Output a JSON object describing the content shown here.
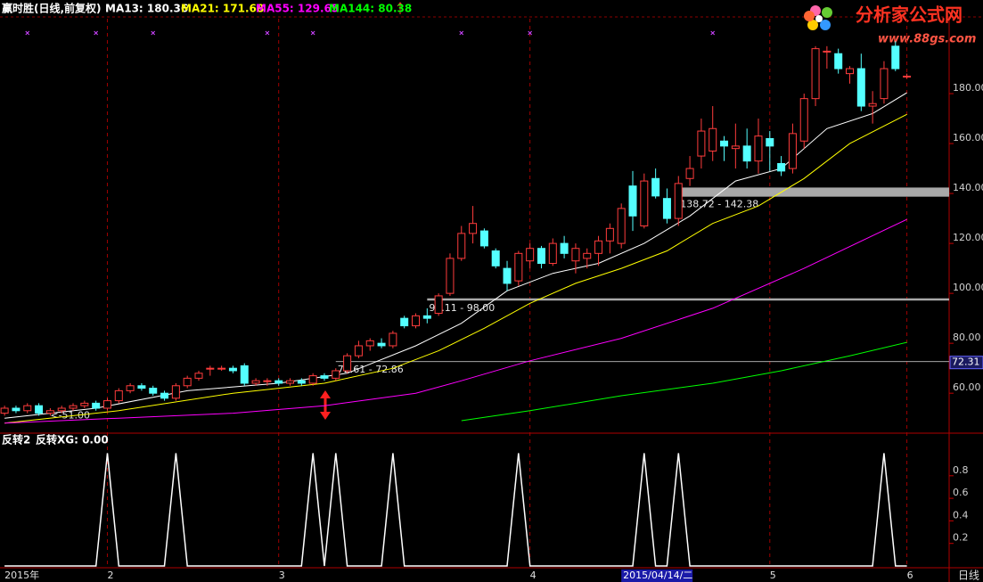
{
  "logo": {
    "title": "分析家公式网",
    "url": "www.88gs.com"
  },
  "chart_data": [
    {
      "type": "candlestick",
      "title": "赢时胜(日线,前复权)",
      "xlim": [
        -0.4,
        82.7
      ],
      "ylim": [
        44,
        210
      ],
      "yticks": [
        {
          "value": 60,
          "label": "60.00"
        },
        {
          "value": 80,
          "label": "80.00"
        },
        {
          "value": 100,
          "label": "100.00"
        },
        {
          "value": 120,
          "label": "120.00"
        },
        {
          "value": 140,
          "label": "140.00"
        },
        {
          "value": 160,
          "label": "160.00"
        },
        {
          "value": 180,
          "label": "180.00"
        }
      ],
      "xticks": [
        {
          "value": 0,
          "label": "2015年"
        },
        {
          "value": 9,
          "label": "2"
        },
        {
          "value": 24,
          "label": "3"
        },
        {
          "value": 46,
          "label": "4"
        },
        {
          "value": 67,
          "label": "5"
        },
        {
          "value": 79,
          "label": "6"
        }
      ],
      "x_axis_label": "日线",
      "cursor_date": {
        "value": 54,
        "label": "2015/04/14/二"
      },
      "cursor_price": 72.31,
      "up_color": "#ff3c3c",
      "down_color": "#54ffff",
      "candles": [
        [
          52,
          55,
          51,
          54
        ],
        [
          54,
          55,
          52,
          53
        ],
        [
          53,
          56,
          52,
          55
        ],
        [
          55,
          56,
          51,
          52
        ],
        [
          52,
          54,
          51,
          53
        ],
        [
          53,
          55,
          52,
          54
        ],
        [
          54,
          56,
          53,
          55
        ],
        [
          55,
          57,
          54,
          56
        ],
        [
          56,
          57,
          53,
          54
        ],
        [
          54,
          58,
          53,
          57
        ],
        [
          57,
          62,
          56,
          61
        ],
        [
          61,
          64,
          60,
          63
        ],
        [
          63,
          64,
          61,
          62
        ],
        [
          62,
          63,
          59,
          60
        ],
        [
          60,
          61,
          57,
          58
        ],
        [
          58,
          64,
          57,
          63
        ],
        [
          63,
          67,
          62,
          66
        ],
        [
          66,
          69,
          65,
          68
        ],
        [
          70,
          71,
          67,
          70
        ],
        [
          70,
          71,
          69,
          70
        ],
        [
          70,
          71,
          68,
          69
        ],
        [
          71,
          72,
          63,
          64
        ],
        [
          64,
          66,
          63,
          65
        ],
        [
          65,
          66,
          63,
          65
        ],
        [
          65,
          66,
          63,
          64
        ],
        [
          64,
          66,
          63,
          65
        ],
        [
          65,
          66,
          63,
          64
        ],
        [
          64,
          68,
          63,
          67
        ],
        [
          67,
          68,
          65,
          66
        ],
        [
          66,
          70,
          65,
          69
        ],
        [
          69,
          76,
          68,
          75
        ],
        [
          75,
          81,
          74,
          79
        ],
        [
          79,
          82,
          77,
          81
        ],
        [
          80,
          82,
          78,
          79
        ],
        [
          79,
          85,
          78,
          84
        ],
        [
          90,
          91,
          86,
          87
        ],
        [
          87,
          92,
          86,
          91
        ],
        [
          91,
          94,
          88,
          90
        ],
        [
          92,
          100,
          91,
          99
        ],
        [
          100,
          116,
          99,
          114
        ],
        [
          114,
          127,
          113,
          124
        ],
        [
          124,
          135,
          120,
          128
        ],
        [
          125,
          126,
          118,
          119
        ],
        [
          117,
          118,
          110,
          111
        ],
        [
          110,
          113,
          101,
          104
        ],
        [
          105,
          117,
          103,
          116
        ],
        [
          113,
          120,
          110,
          118
        ],
        [
          118,
          119,
          110,
          112
        ],
        [
          112,
          122,
          111,
          120
        ],
        [
          120,
          123,
          114,
          116
        ],
        [
          113,
          120,
          108,
          118
        ],
        [
          114,
          118,
          110,
          116
        ],
        [
          116,
          123,
          111,
          121
        ],
        [
          121,
          128,
          116,
          126
        ],
        [
          120,
          136,
          118,
          134
        ],
        [
          143,
          149,
          125,
          131
        ],
        [
          127,
          148,
          126,
          145
        ],
        [
          146,
          150,
          138,
          139
        ],
        [
          138,
          142,
          128,
          130
        ],
        [
          130,
          147,
          127,
          144
        ],
        [
          146,
          155,
          143,
          150
        ],
        [
          155,
          170,
          150,
          165
        ],
        [
          157,
          175,
          153,
          166
        ],
        [
          161,
          163,
          153,
          159
        ],
        [
          158,
          168,
          150,
          159
        ],
        [
          159,
          166,
          150,
          153
        ],
        [
          153,
          170,
          148,
          163
        ],
        [
          162,
          165,
          149,
          159
        ],
        [
          152,
          155,
          147,
          149
        ],
        [
          150,
          168,
          148,
          164
        ],
        [
          161,
          180,
          158,
          178
        ],
        [
          178,
          199,
          175,
          198
        ],
        [
          197,
          199,
          190,
          197
        ],
        [
          196,
          198,
          188,
          190
        ],
        [
          188,
          191,
          184,
          190
        ],
        [
          190,
          196,
          173,
          175
        ],
        [
          175,
          181,
          168,
          176
        ],
        [
          178,
          193,
          176,
          190
        ],
        [
          199,
          201,
          189,
          190
        ],
        [
          187,
          188,
          186,
          187
        ]
      ],
      "series": [
        {
          "name": "MA13: 180.36",
          "color": "#ffffff",
          "x": [
            0,
            8,
            16,
            24,
            30,
            36,
            40,
            44,
            48,
            52,
            56,
            60,
            64,
            68,
            72,
            76,
            79
          ],
          "values": [
            50,
            54,
            61,
            64,
            68,
            79,
            88,
            101,
            108,
            112,
            120,
            131,
            145,
            150,
            166,
            172,
            180.36
          ]
        },
        {
          "name": "MA21: 171.68",
          "color": "#ffff00",
          "x": [
            0,
            10,
            20,
            28,
            34,
            38,
            42,
            46,
            50,
            54,
            58,
            62,
            66,
            70,
            74,
            79
          ],
          "values": [
            48,
            53,
            60,
            64,
            70,
            77,
            86,
            96,
            104,
            110,
            117,
            128,
            135,
            146,
            160,
            171.68
          ]
        },
        {
          "name": "MA55: 129.65",
          "color": "#ff00ff",
          "x": [
            0,
            10,
            20,
            28,
            36,
            40,
            46,
            54,
            62,
            70,
            79
          ],
          "values": [
            48,
            50,
            52,
            55,
            60,
            65,
            73,
            82,
            94,
            110,
            129.65
          ]
        },
        {
          "name": "MA144: 80.38",
          "color": "#00ff00",
          "x": [
            40,
            46,
            54,
            62,
            68,
            74,
            79
          ],
          "values": [
            49,
            53,
            59,
            64,
            69,
            75,
            80.38
          ]
        }
      ],
      "levels": [
        {
          "low": 138.72,
          "high": 142.38,
          "start": 59,
          "label": "138.72 - 142.38"
        },
        {
          "low": 97.11,
          "high": 98.0,
          "start": 37,
          "label": "97.11 - 98.00"
        },
        {
          "low": 72.61,
          "high": 72.86,
          "start": 29,
          "label": "72.61 - 72.86"
        }
      ],
      "annotations": [
        {
          "text": "<-51.00",
          "value": 51,
          "index": 4
        }
      ],
      "signals": [
        2,
        8,
        13,
        23,
        27,
        40,
        46,
        62
      ]
    },
    {
      "type": "line",
      "title": "反转2",
      "ylim": [
        0,
        1.17
      ],
      "yticks": [
        0.2,
        0.4,
        0.6,
        0.8
      ],
      "series": [
        {
          "name": "反转XG: 0.00",
          "color": "#ffffff",
          "values": [
            0,
            0,
            0,
            0,
            0,
            0,
            0,
            0,
            0,
            1,
            0,
            0,
            0,
            0,
            0,
            1,
            0,
            0,
            0,
            0,
            0,
            0,
            0,
            0,
            0,
            0,
            0,
            1,
            0,
            1,
            0,
            0,
            0,
            0,
            1,
            0,
            0,
            0,
            0,
            0,
            0,
            0,
            0,
            0,
            0,
            1,
            0,
            0,
            0,
            0,
            0,
            0,
            0,
            0,
            0,
            0,
            1,
            0,
            0,
            1,
            0,
            0,
            0,
            0,
            0,
            0,
            0,
            0,
            0,
            0,
            0,
            0,
            0,
            0,
            0,
            0,
            0,
            1,
            0,
            0
          ]
        }
      ]
    }
  ]
}
